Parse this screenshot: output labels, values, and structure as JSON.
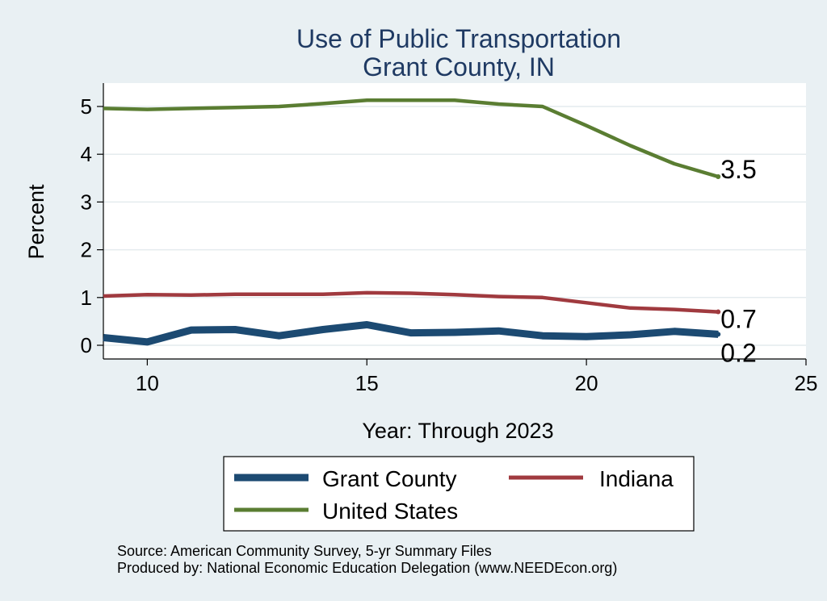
{
  "chart_data": {
    "type": "line",
    "title": [
      "Use of Public Transportation",
      "Grant County, IN"
    ],
    "xlabel": "Year: Through 2023",
    "ylabel": "Percent",
    "xlim": [
      9,
      25
    ],
    "ylim": [
      0,
      5.2
    ],
    "xticks": [
      10,
      15,
      20,
      25
    ],
    "yticks": [
      0,
      1,
      2,
      3,
      4,
      5
    ],
    "grid": true,
    "legend_position": "bottom",
    "x": [
      9,
      10,
      11,
      12,
      13,
      14,
      15,
      16,
      17,
      18,
      19,
      20,
      21,
      22,
      23
    ],
    "series": [
      {
        "name": "Grant County",
        "color": "#1c4a72",
        "values": [
          0.16,
          0.07,
          0.32,
          0.33,
          0.2,
          0.33,
          0.43,
          0.26,
          0.27,
          0.3,
          0.2,
          0.18,
          0.22,
          0.29,
          0.23
        ],
        "end_label": "0.2"
      },
      {
        "name": "Indiana",
        "color": "#a03a3f",
        "values": [
          1.03,
          1.06,
          1.05,
          1.07,
          1.07,
          1.07,
          1.1,
          1.09,
          1.06,
          1.02,
          1.0,
          0.89,
          0.78,
          0.75,
          0.7
        ],
        "end_label": "0.7"
      },
      {
        "name": "United States",
        "color": "#5a7d32",
        "values": [
          4.96,
          4.94,
          4.96,
          4.98,
          5.0,
          5.06,
          5.13,
          5.13,
          5.13,
          5.05,
          5.0,
          4.6,
          4.18,
          3.8,
          3.53
        ],
        "end_label": "3.5"
      }
    ],
    "notes": [
      "Source: American Community Survey, 5-yr Summary Files",
      "Produced by: National Economic Education Delegation (www.NEEDEcon.org)"
    ]
  }
}
